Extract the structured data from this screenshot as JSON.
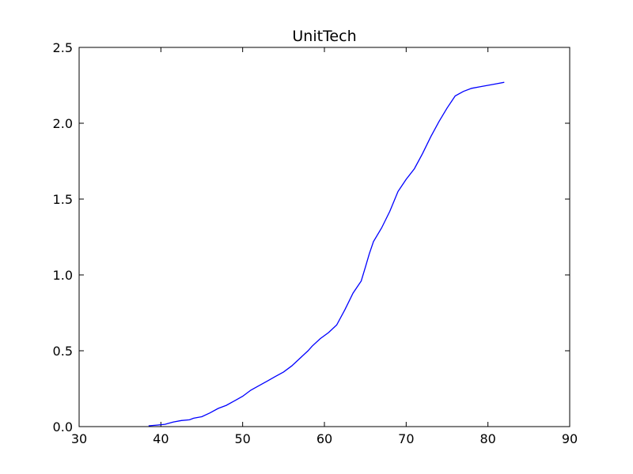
{
  "chart_data": {
    "type": "line",
    "title": "UnitTech",
    "xlabel": "",
    "ylabel": "",
    "xlim": [
      30,
      90
    ],
    "ylim": [
      0,
      2.5
    ],
    "xticks": [
      30,
      40,
      50,
      60,
      70,
      80,
      90
    ],
    "yticks": [
      0.0,
      0.5,
      1.0,
      1.5,
      2.0,
      2.5
    ],
    "xtick_labels": [
      "30",
      "40",
      "50",
      "60",
      "70",
      "80",
      "90"
    ],
    "ytick_labels": [
      "0.0",
      "0.5",
      "1.0",
      "1.5",
      "2.0",
      "2.5"
    ],
    "grid": false,
    "legend": "none",
    "series": [
      {
        "color": "#0000ff",
        "x": [
          38.5,
          39.5,
          40.5,
          41.5,
          42.5,
          43.5,
          44.0,
          45.0,
          46.0,
          47.0,
          48.0,
          49.0,
          50.0,
          51.0,
          52.0,
          53.0,
          54.0,
          55.0,
          56.0,
          57.0,
          58.0,
          58.5,
          59.5,
          60.5,
          61.5,
          62.5,
          63.5,
          64.5,
          65.0,
          65.5,
          66.0,
          67.0,
          68.0,
          69.0,
          70.0,
          71.0,
          72.0,
          73.0,
          74.0,
          75.0,
          76.0,
          77.0,
          78.0,
          79.0,
          80.0,
          81.0,
          82.0
        ],
        "y": [
          0.005,
          0.01,
          0.015,
          0.03,
          0.04,
          0.045,
          0.055,
          0.065,
          0.09,
          0.12,
          0.14,
          0.17,
          0.2,
          0.24,
          0.27,
          0.3,
          0.33,
          0.36,
          0.4,
          0.45,
          0.5,
          0.53,
          0.58,
          0.62,
          0.67,
          0.77,
          0.88,
          0.96,
          1.05,
          1.14,
          1.22,
          1.31,
          1.42,
          1.55,
          1.63,
          1.7,
          1.8,
          1.91,
          2.01,
          2.1,
          2.18,
          2.21,
          2.23,
          2.24,
          2.25,
          2.26,
          2.27
        ]
      }
    ]
  }
}
